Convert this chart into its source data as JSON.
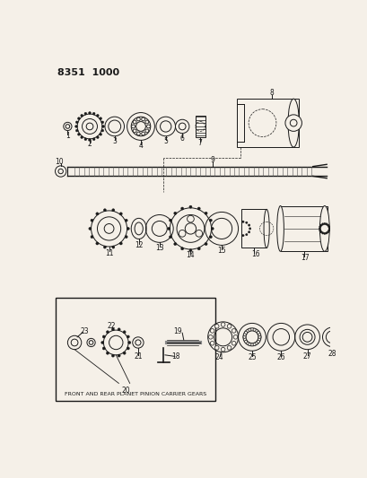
{
  "title": "8351  1000",
  "bg_color": "#f5f0e8",
  "line_color": "#1a1a1a",
  "fig_width": 4.1,
  "fig_height": 5.33,
  "dpi": 100,
  "caption": "FRONT AND REAR PLANET PINION CARRIER GEARS",
  "items": [
    "1",
    "2",
    "3",
    "4",
    "5",
    "6",
    "7",
    "8",
    "9",
    "10",
    "11",
    "12",
    "13",
    "14",
    "15",
    "16",
    "17",
    "18",
    "19",
    "20",
    "21",
    "22",
    "23",
    "24",
    "25",
    "26",
    "27",
    "28"
  ]
}
